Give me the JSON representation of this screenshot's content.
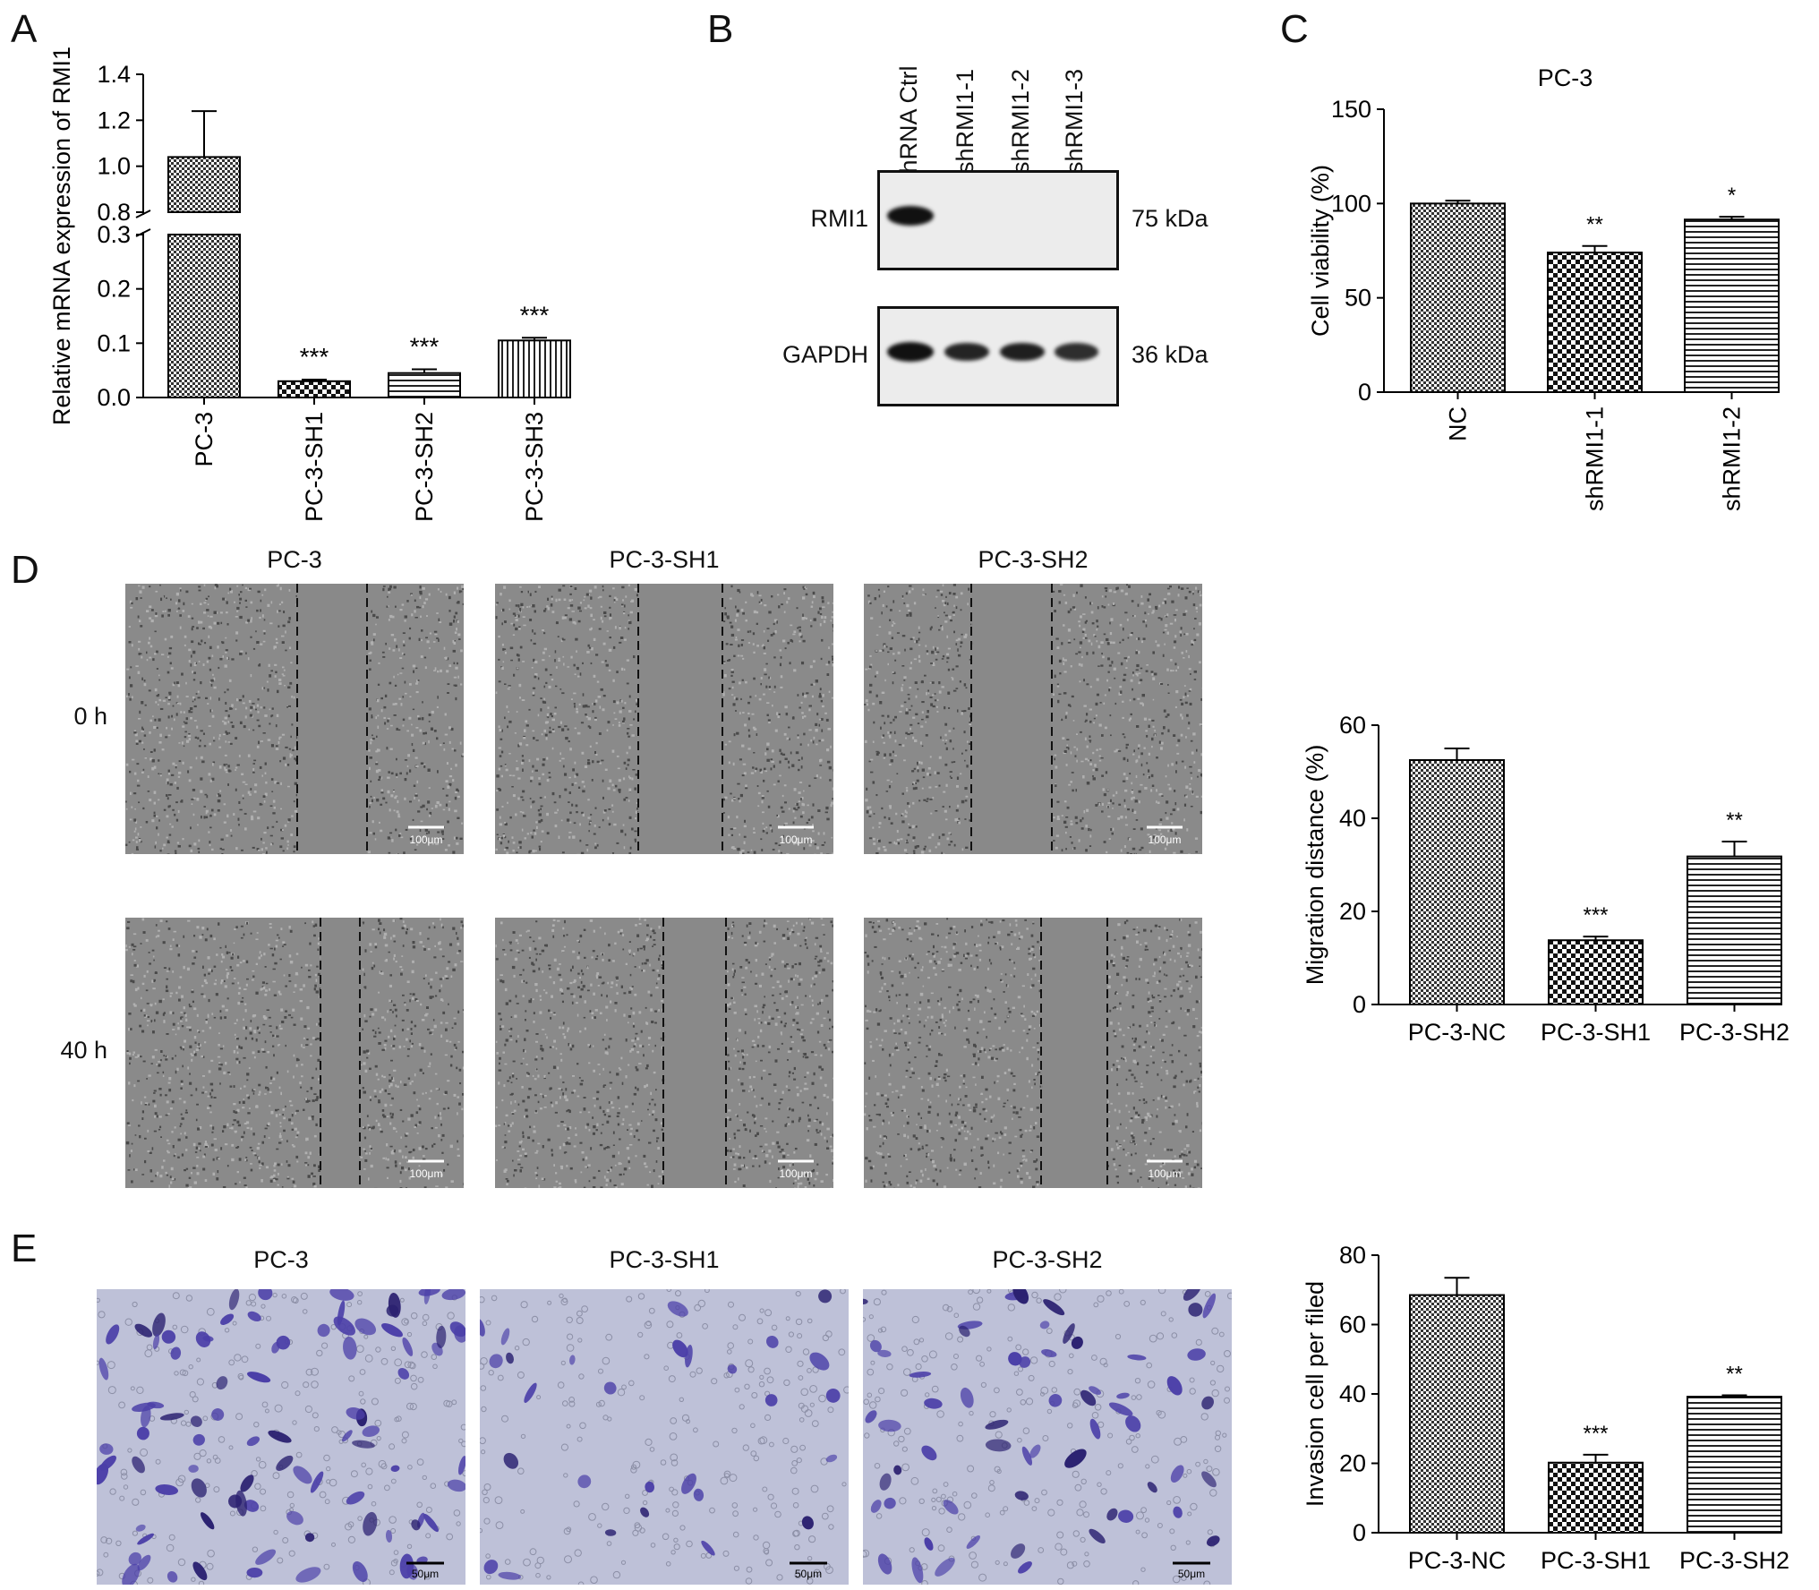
{
  "panels": {
    "A": {
      "letter": "A",
      "chart_data": {
        "type": "bar",
        "ylabel": "Relative mRNA expression of RMI1",
        "categories": [
          "PC-3",
          "PC-3-SH1",
          "PC-3-SH2",
          "PC-3-SH3"
        ],
        "values": [
          1.04,
          0.03,
          0.045,
          0.105
        ],
        "errors": [
          0.2,
          0.003,
          0.007,
          0.005
        ],
        "ylim_lower": [
          0,
          0.3
        ],
        "ylim_upper": [
          0.8,
          1.4
        ],
        "ticks_lower": [
          "0.0",
          "0.1",
          "0.2",
          "0.3"
        ],
        "ticks_upper": [
          "0.8",
          "1.0",
          "1.2",
          "1.4"
        ],
        "significance": [
          "",
          "***",
          "***",
          "***"
        ],
        "patterns": [
          "dense-check",
          "check",
          "hstripe",
          "vstripe"
        ]
      }
    },
    "B": {
      "letter": "B",
      "lanes": [
        "shRNA Ctrl",
        "shRMI1-1",
        "shRMI1-2",
        "shRMI1-3"
      ],
      "blots": [
        {
          "protein": "RMI1",
          "size": "75 kDa",
          "intensity": [
            1,
            0,
            0,
            0
          ]
        },
        {
          "protein": "GAPDH",
          "size": "36 kDa",
          "intensity": [
            1,
            0.8,
            0.85,
            0.7
          ]
        }
      ]
    },
    "C": {
      "letter": "C",
      "chart_data": {
        "type": "bar",
        "title": "PC-3",
        "ylabel": "Cell viability (%)",
        "categories": [
          "NC",
          "shRMI1-1",
          "shRMI1-2"
        ],
        "values": [
          100,
          74,
          91.5
        ],
        "errors": [
          1.5,
          3.5,
          1.5
        ],
        "ylim": [
          0,
          150
        ],
        "yticks": [
          0,
          50,
          100,
          150
        ],
        "significance": [
          "",
          "**",
          "*"
        ],
        "patterns": [
          "dense-check",
          "check",
          "hstripe"
        ]
      }
    },
    "D": {
      "letter": "D",
      "columns": [
        "PC-3",
        "PC-3-SH1",
        "PC-3-SH2"
      ],
      "rows": [
        "0 h",
        "40 h"
      ],
      "scale_bar": "100μm",
      "chart_data": {
        "type": "bar",
        "ylabel": "Migration distance (%)",
        "categories": [
          "PC-3-NC",
          "PC-3-SH1",
          "PC-3-SH2"
        ],
        "values": [
          52.5,
          13.8,
          31.8
        ],
        "errors": [
          2.5,
          0.8,
          3.2
        ],
        "ylim": [
          0,
          60
        ],
        "yticks": [
          0,
          20,
          40,
          60
        ],
        "significance": [
          "",
          "***",
          "**"
        ],
        "patterns": [
          "dense-check",
          "check",
          "hstripe"
        ]
      }
    },
    "E": {
      "letter": "E",
      "columns": [
        "PC-3",
        "PC-3-SH1",
        "PC-3-SH2"
      ],
      "scale_bar": "50μm",
      "chart_data": {
        "type": "bar",
        "ylabel": "Invasion cell per filed",
        "categories": [
          "PC-3-NC",
          "PC-3-SH1",
          "PC-3-SH2"
        ],
        "values": [
          68.5,
          20.2,
          39.2
        ],
        "errors": [
          5.0,
          2.3,
          0.4
        ],
        "ylim": [
          0,
          80
        ],
        "yticks": [
          0,
          20,
          40,
          60,
          80
        ],
        "significance": [
          "",
          "***",
          "**"
        ],
        "patterns": [
          "dense-check",
          "check",
          "hstripe"
        ]
      }
    }
  },
  "colors": {
    "stain": "#4b3fa8",
    "stain_dark": "#2a2070",
    "wound_field": "#7a7a7a",
    "invasion_field": "#bec1d8"
  }
}
